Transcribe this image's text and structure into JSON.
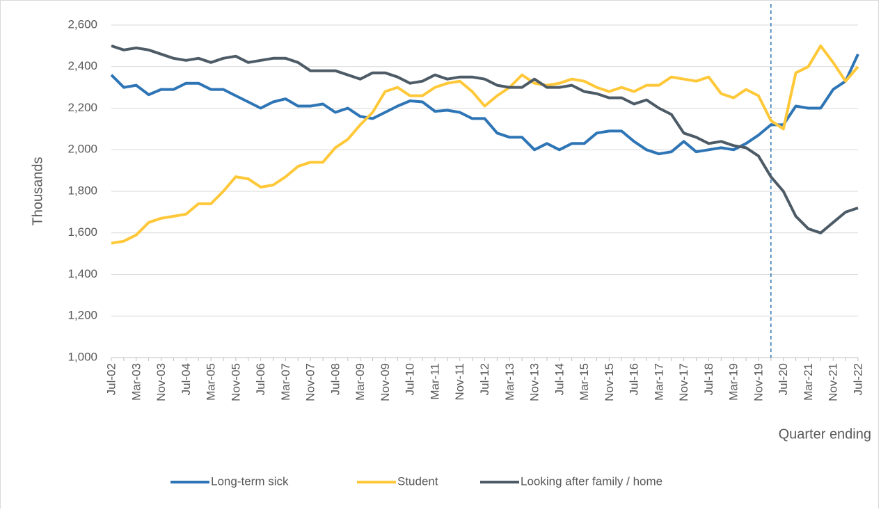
{
  "chart_data": {
    "type": "line",
    "y_axis_label": "Thousands",
    "x_axis_label": "Quarter ending",
    "categories": [
      "Jul-02",
      null,
      "Mar-03",
      null,
      "Nov-03",
      null,
      "Jul-04",
      null,
      "Mar-05",
      null,
      "Nov-05",
      null,
      "Jul-06",
      null,
      "Mar-07",
      null,
      "Nov-07",
      null,
      "Jul-08",
      null,
      "Mar-09",
      null,
      "Nov-09",
      null,
      "Jul-10",
      null,
      "Mar-11",
      null,
      "Nov-11",
      null,
      "Jul-12",
      null,
      "Mar-13",
      null,
      "Nov-13",
      null,
      "Jul-14",
      null,
      "Mar-15",
      null,
      "Nov-15",
      null,
      "Jul-16",
      null,
      "Mar-17",
      null,
      "Nov-17",
      null,
      "Jul-18",
      null,
      "Mar-19",
      null,
      "Nov-19",
      null,
      "Jul-20",
      null,
      "Mar-21",
      null,
      "Nov-21",
      null,
      "Jul-22"
    ],
    "series": [
      {
        "name": "Long-term sick",
        "color": "#2e75b6",
        "values": [
          2360,
          2300,
          2310,
          2265,
          2290,
          2290,
          2320,
          2320,
          2290,
          2290,
          2260,
          2230,
          2200,
          2230,
          2245,
          2210,
          2210,
          2220,
          2180,
          2200,
          2160,
          2150,
          2180,
          2210,
          2235,
          2230,
          2185,
          2190,
          2180,
          2150,
          2150,
          2080,
          2060,
          2060,
          2000,
          2030,
          2000,
          2030,
          2030,
          2080,
          2090,
          2090,
          2040,
          2000,
          1980,
          1990,
          2040,
          1990,
          2000,
          2010,
          2000,
          2030,
          2070,
          2120,
          2120,
          2210,
          2200,
          2200,
          2290,
          2330,
          2460
        ]
      },
      {
        "name": "Student",
        "color": "#ffc839",
        "values": [
          1550,
          1560,
          1590,
          1650,
          1670,
          1680,
          1690,
          1740,
          1740,
          1800,
          1870,
          1860,
          1820,
          1830,
          1870,
          1920,
          1940,
          1940,
          2010,
          2050,
          2120,
          2180,
          2280,
          2300,
          2260,
          2260,
          2300,
          2320,
          2330,
          2280,
          2210,
          2260,
          2300,
          2360,
          2320,
          2310,
          2320,
          2340,
          2330,
          2300,
          2280,
          2300,
          2280,
          2310,
          2310,
          2350,
          2340,
          2330,
          2350,
          2270,
          2250,
          2290,
          2260,
          2140,
          2100,
          2370,
          2400,
          2500,
          2420,
          2330,
          2400
        ]
      },
      {
        "name": "Looking after family / home",
        "color": "#4d5b66",
        "values": [
          2500,
          2480,
          2490,
          2480,
          2460,
          2440,
          2430,
          2440,
          2420,
          2440,
          2450,
          2420,
          2430,
          2440,
          2440,
          2420,
          2380,
          2380,
          2380,
          2360,
          2340,
          2370,
          2370,
          2350,
          2320,
          2330,
          2360,
          2340,
          2350,
          2350,
          2340,
          2310,
          2300,
          2300,
          2340,
          2300,
          2300,
          2310,
          2280,
          2270,
          2250,
          2250,
          2220,
          2240,
          2200,
          2170,
          2080,
          2060,
          2030,
          2040,
          2020,
          2010,
          1970,
          1870,
          1800,
          1680,
          1620,
          1600,
          1650,
          1700,
          1720
        ]
      }
    ],
    "ylim": [
      1000,
      2600
    ],
    "yticks": [
      {
        "value": 1000,
        "label": "1,000"
      },
      {
        "value": 1200,
        "label": "1,200"
      },
      {
        "value": 1400,
        "label": "1,400"
      },
      {
        "value": 1600,
        "label": "1,600"
      },
      {
        "value": 1800,
        "label": "1,800"
      },
      {
        "value": 2000,
        "label": "2,000"
      },
      {
        "value": 2200,
        "label": "2,200"
      },
      {
        "value": 2400,
        "label": "2,400"
      },
      {
        "value": 2600,
        "label": "2,600"
      }
    ],
    "grid": true,
    "legend": "bottom",
    "vline": {
      "x_index": 53,
      "color": "#2e75b6",
      "style": "dashed"
    }
  }
}
